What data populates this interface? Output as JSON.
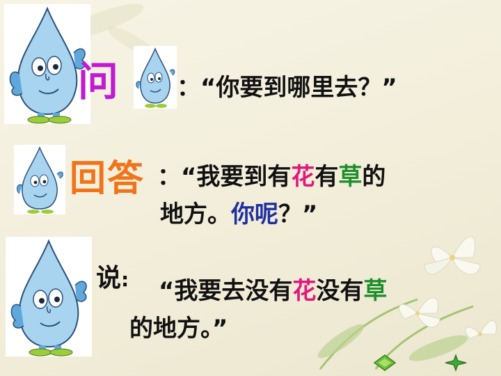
{
  "row1": {
    "label": "问",
    "colon": "：",
    "quote": "“你要到哪里去？”"
  },
  "row2": {
    "label": "回答",
    "colon": "：",
    "q_open": "“我要到有",
    "flower": "花",
    "mid": "有",
    "grass": "草",
    "tail": "的",
    "line2_a": "地方。",
    "line2_b": "你呢",
    "line2_c": "？”"
  },
  "row3": {
    "label": "说",
    "colon": ":",
    "q_open": "“我要去没有",
    "flower": "花",
    "mid": "没有",
    "grass": "草",
    "line2": "的地方。”"
  },
  "colors": {
    "wen": "#c21ad0",
    "huida": "#f0741a",
    "flower": "#e0197d",
    "grass": "#1e8f2c",
    "ni_ne": "#1f2fa0"
  },
  "icons": [
    "water-drop-mascot-icon",
    "lily-flowers-icon",
    "nav-back-icon",
    "nav-forward-icon"
  ]
}
